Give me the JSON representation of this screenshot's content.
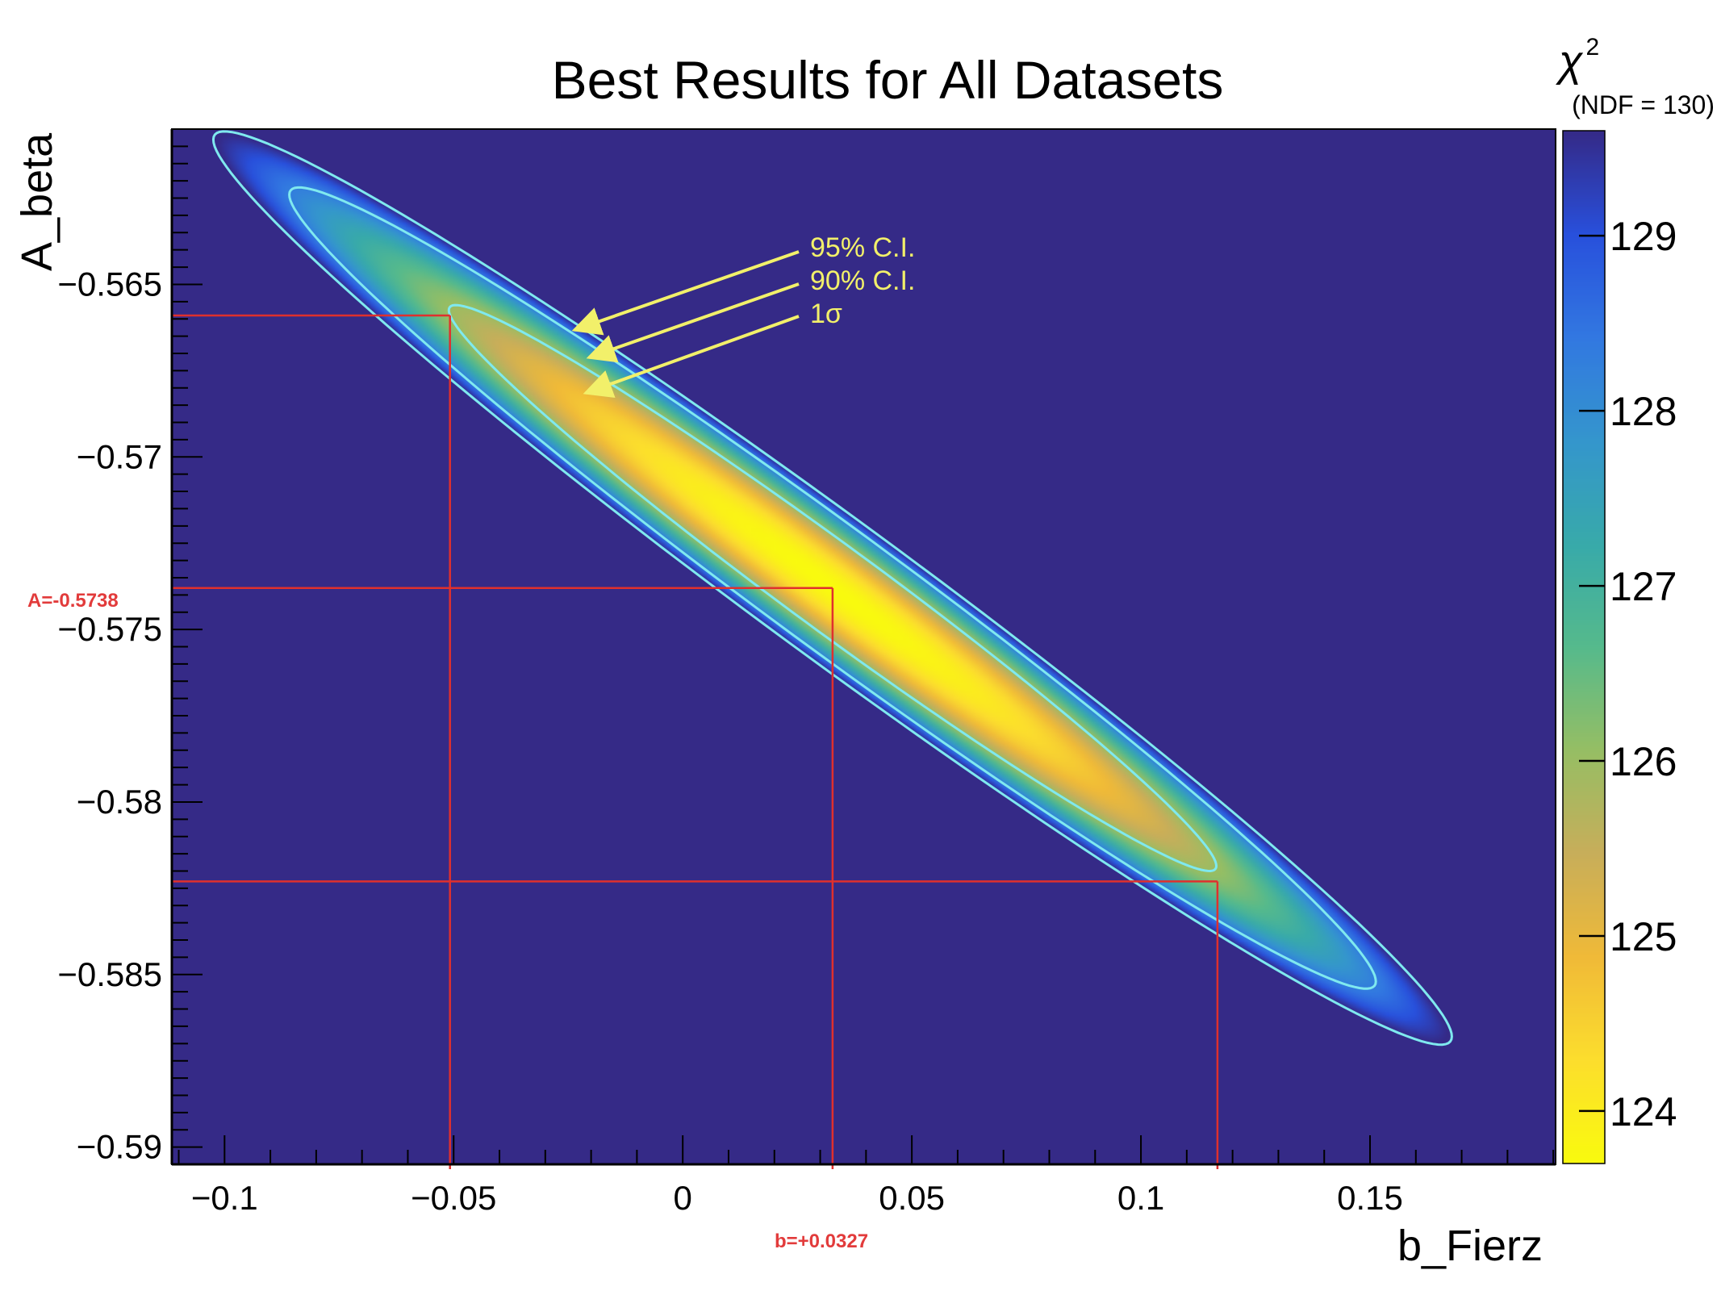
{
  "chart_data": {
    "type": "heatmap",
    "title": "Best Results for All Datasets",
    "xlabel": "b_Fierz",
    "ylabel": "A_beta",
    "xlim": [
      -0.1115,
      0.1905
    ],
    "ylim": [
      -0.5905,
      -0.5605
    ],
    "x_ticks": [
      -0.1,
      -0.05,
      0,
      0.05,
      0.1,
      0.15
    ],
    "x_tick_labels": [
      "−0.1",
      "−0.05",
      "0",
      "0.05",
      "0.1",
      "0.15"
    ],
    "y_ticks": [
      -0.565,
      -0.57,
      -0.575,
      -0.58,
      -0.585,
      -0.59
    ],
    "y_tick_labels": [
      "−0.565",
      "−0.57",
      "−0.575",
      "−0.58",
      "−0.585",
      "−0.59"
    ],
    "colorbar": {
      "label": "χ",
      "label_superscript": "2",
      "sublabel": "(NDF = 130)",
      "range": [
        123.7,
        129.6
      ],
      "ticks": [
        124,
        125,
        126,
        127,
        128,
        129
      ],
      "tick_labels": [
        "124",
        "125",
        "126",
        "127",
        "128",
        "129"
      ]
    },
    "best_fit": {
      "b": 0.0327,
      "A": -0.5738,
      "chi2_min": 123.7
    },
    "contours": [
      {
        "name": "1σ",
        "delta_chi2": 2.3,
        "b_range": [
          -0.0508,
          0.1167
        ],
        "A_range": [
          -0.5823,
          -0.5659
        ]
      },
      {
        "name": "90% C.I.",
        "delta_chi2": 4.61
      },
      {
        "name": "95% C.I.",
        "delta_chi2": 5.99
      }
    ],
    "annotations": {
      "ci95": "95% C.I.",
      "ci90": "90% C.I.",
      "sigma1": "1σ",
      "A_value": "A=-0.5738",
      "b_value": "b=+0.0327"
    },
    "colors": {
      "background": "#352a87",
      "contour": "#7fe9ef",
      "red_lines": "#e0302d",
      "annotation": "#f2f06a"
    }
  }
}
